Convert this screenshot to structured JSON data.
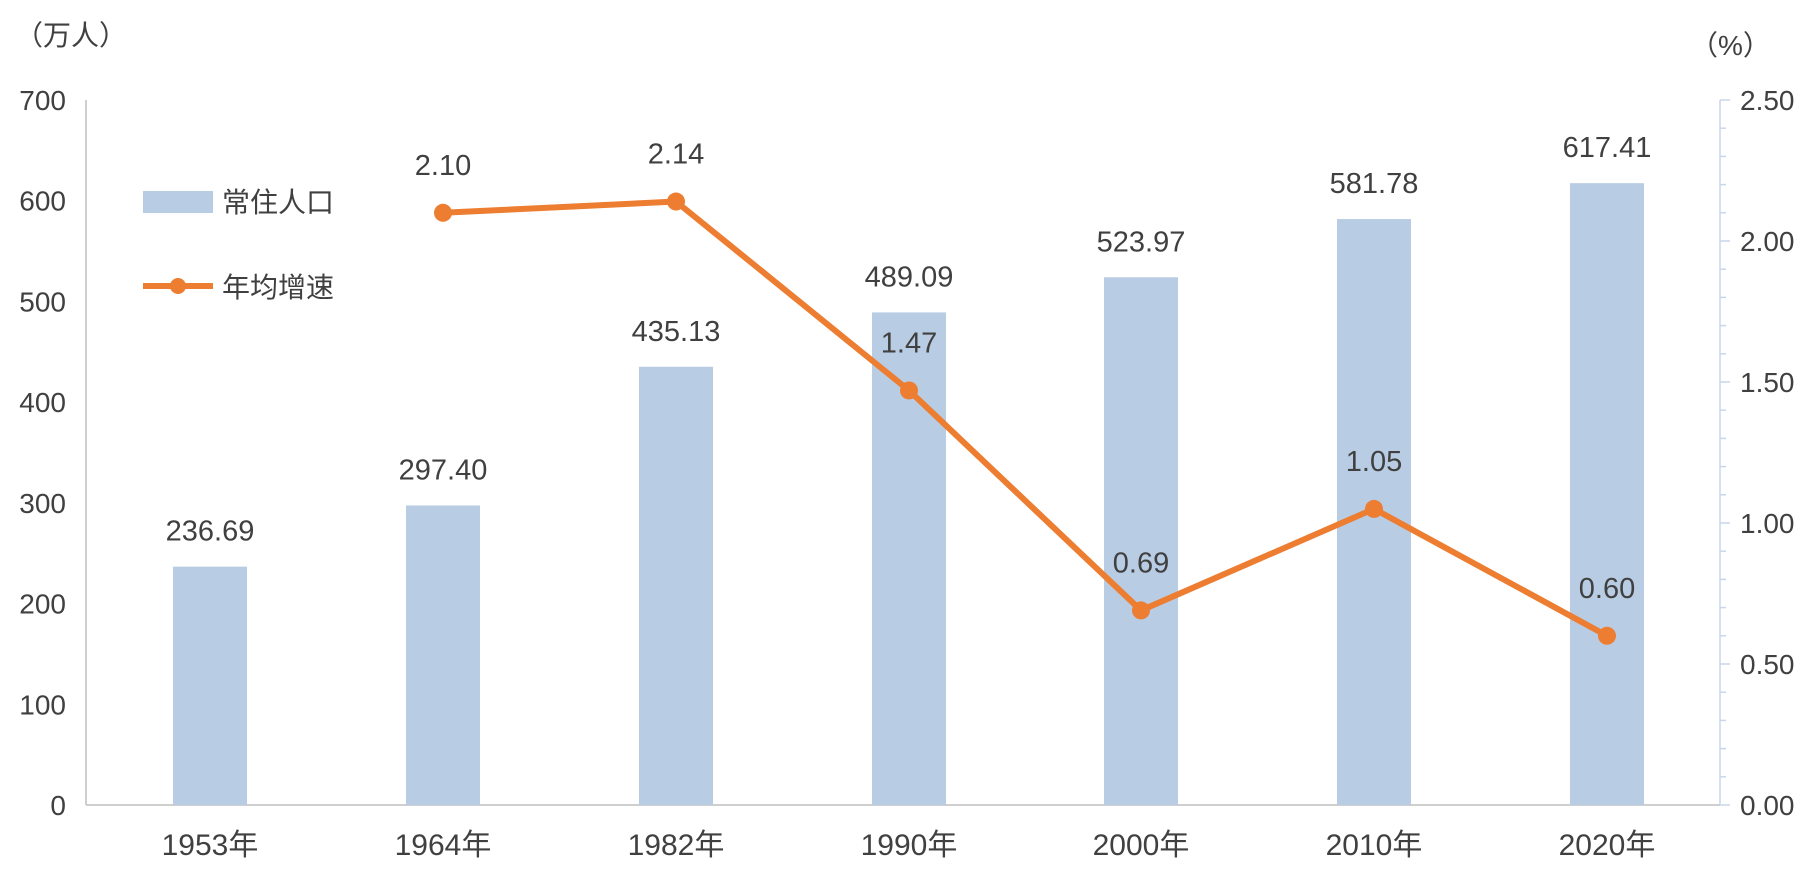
{
  "chart_data": {
    "type": "bar+line",
    "categories": [
      "1953年",
      "1964年",
      "1982年",
      "1990年",
      "2000年",
      "2010年",
      "2020年"
    ],
    "series": [
      {
        "name": "常住人口",
        "type": "bar",
        "axis": "left",
        "values": [
          236.69,
          297.4,
          435.13,
          489.09,
          523.97,
          581.78,
          617.41
        ],
        "labels": [
          "236.69",
          "297.40",
          "435.13",
          "489.09",
          "523.97",
          "581.78",
          "617.41"
        ],
        "color": "#b8cce4"
      },
      {
        "name": "年均增速",
        "type": "line",
        "axis": "right",
        "values": [
          null,
          2.1,
          2.14,
          1.47,
          0.69,
          1.05,
          0.6
        ],
        "labels": [
          "",
          "2.10",
          "2.14",
          "1.47",
          "0.69",
          "1.05",
          "0.60"
        ],
        "color": "#ed7d31"
      }
    ],
    "y_left": {
      "unit": "（万人）",
      "ticks": [
        "0",
        "100",
        "200",
        "300",
        "400",
        "500",
        "600",
        "700"
      ],
      "lim": [
        0,
        700
      ]
    },
    "y_right": {
      "unit": "（%）",
      "ticks": [
        "0.00",
        "0.50",
        "1.00",
        "1.50",
        "2.00",
        "2.50"
      ],
      "lim": [
        0,
        2.5
      ]
    },
    "grid": false,
    "legend_position": "top-left"
  }
}
